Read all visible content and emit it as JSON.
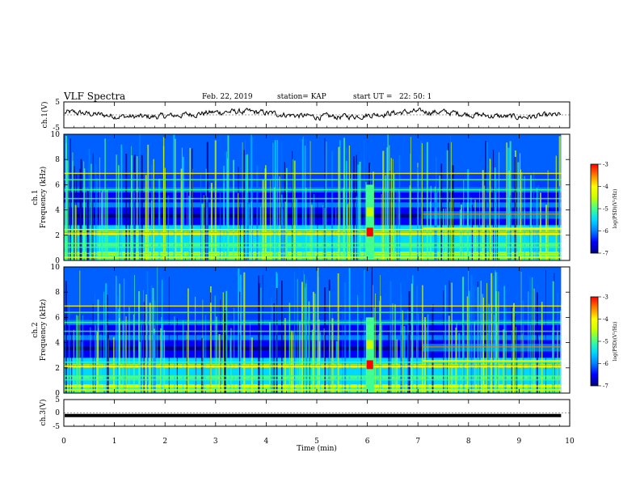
{
  "header": {
    "title": "VLF Spectra",
    "date": "Feb. 22, 2019",
    "station": "station= KAP",
    "start": "start UT =   22: 50: 1"
  },
  "colors": {
    "trace": "#000000",
    "colormap": [
      "#000080",
      "#0000ff",
      "#0080ff",
      "#00d8ff",
      "#40ff90",
      "#c8ff00",
      "#ffff00",
      "#ff8000",
      "#ff0000"
    ]
  },
  "chart_data": [
    {
      "id": "ch1-waveform",
      "type": "line",
      "ylabel": "ch.1(V)",
      "ylim": [
        -5,
        5
      ],
      "y_ticks": [
        "5",
        "-5"
      ],
      "xlim": [
        0,
        10
      ],
      "data_end_min": 9.83,
      "description_series": "noisy signal oscillating roughly between -1 and 1.5 V"
    },
    {
      "id": "ch1-spectrogram",
      "type": "heatmap",
      "ylabel_line1": "ch.1",
      "ylabel_line2": "Frequency (kHz)",
      "ylim": [
        0,
        10
      ],
      "y_ticks": [
        "0",
        "2",
        "4",
        "6",
        "8",
        "10"
      ],
      "xlim": [
        0,
        10
      ],
      "colorbar": {
        "label": "log(PSD)(V²/Hz)",
        "range": [
          -7,
          -3
        ],
        "ticks": [
          "-3",
          "-4",
          "-5",
          "-6",
          "-7"
        ]
      },
      "event_time_min": 6.05,
      "band_shift_time_min": 7.1
    },
    {
      "id": "ch2-spectrogram",
      "type": "heatmap",
      "ylabel_line1": "ch.2",
      "ylabel_line2": "Frequency (kHz)",
      "ylim": [
        0,
        10
      ],
      "y_ticks": [
        "0",
        "2",
        "4",
        "6",
        "8",
        "10"
      ],
      "xlim": [
        0,
        10
      ],
      "colorbar": {
        "label": "log(PSD)(V²/Hz)",
        "range": [
          -7,
          -3
        ],
        "ticks": [
          "-3",
          "-4",
          "-5",
          "-6",
          "-7"
        ]
      },
      "event_time_min": 6.05,
      "band_shift_time_min": 7.1
    },
    {
      "id": "ch3-waveform",
      "type": "line",
      "ylabel": "ch.3(V)",
      "ylim": [
        -5,
        5
      ],
      "y_ticks": [
        "5",
        "0",
        "-5"
      ],
      "xlim": [
        0,
        10
      ],
      "data_end_min": 9.83,
      "constant_value": -1
    }
  ],
  "x_axis": {
    "label": "Time (min)",
    "ticks": [
      "0",
      "1",
      "2",
      "3",
      "4",
      "5",
      "6",
      "7",
      "8",
      "9",
      "10"
    ]
  }
}
